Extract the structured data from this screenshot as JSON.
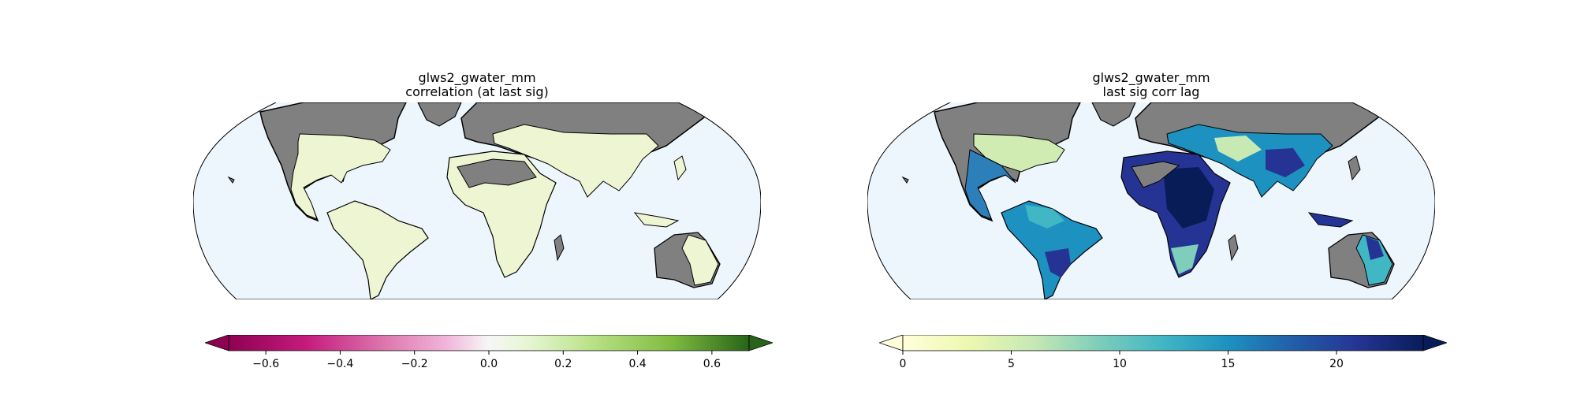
{
  "maps": [
    {
      "title": "glws2_gwater_mm",
      "subtitle": "correlation (at last sig)",
      "colorbar": {
        "colormap": "PiYG",
        "range": [
          -0.7,
          0.7
        ],
        "extend": "both",
        "ticks": [
          {
            "value": -0.6,
            "label": "−0.6"
          },
          {
            "value": -0.4,
            "label": "−0.4"
          },
          {
            "value": -0.2,
            "label": "−0.2"
          },
          {
            "value": 0.0,
            "label": "0.0"
          },
          {
            "value": 0.2,
            "label": "0.2"
          },
          {
            "value": 0.4,
            "label": "0.4"
          },
          {
            "value": 0.6,
            "label": "0.6"
          }
        ]
      }
    },
    {
      "title": "glws2_gwater_mm",
      "subtitle": "last sig corr lag",
      "colorbar": {
        "colormap": "YlGnBu",
        "range": [
          0,
          24
        ],
        "extend": "both",
        "ticks": [
          {
            "value": 0,
            "label": "0"
          },
          {
            "value": 5,
            "label": "5"
          },
          {
            "value": 10,
            "label": "10"
          },
          {
            "value": 15,
            "label": "15"
          },
          {
            "value": 20,
            "label": "20"
          }
        ]
      }
    }
  ],
  "colors": {
    "ocean": "#eef6fd",
    "no_data_land": "#808080",
    "border": "#000000"
  }
}
